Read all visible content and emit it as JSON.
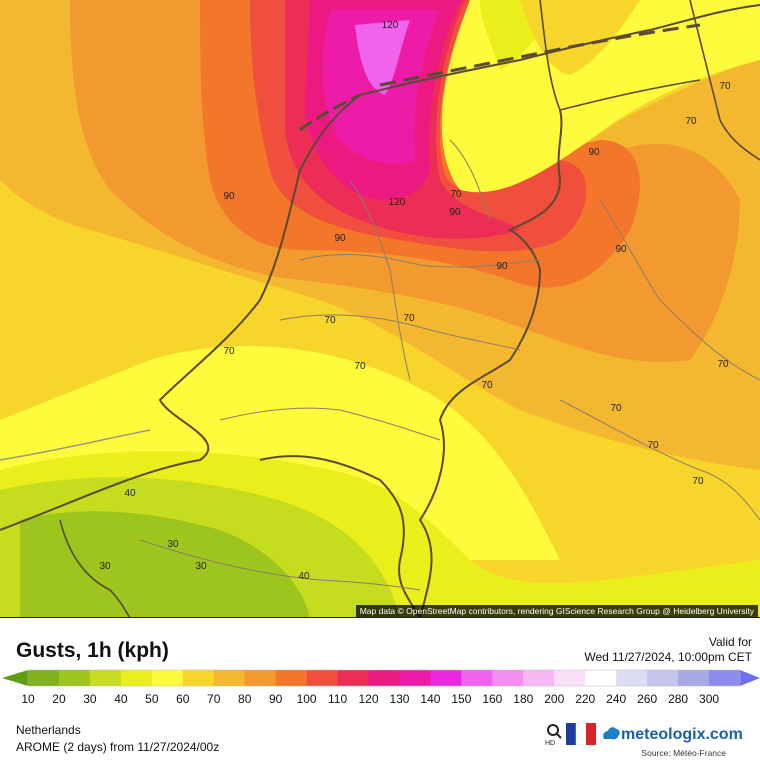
{
  "map": {
    "attribution": "Map data © OpenStreetMap contributors, rendering GIScience Research Group @ Heidelberg University",
    "contour_labels": [
      {
        "text": "120",
        "id": "a"
      },
      {
        "text": "120",
        "id": "b"
      },
      {
        "text": "90",
        "id": "c"
      },
      {
        "text": "90",
        "id": "d"
      },
      {
        "text": "90",
        "id": "e"
      },
      {
        "text": "90",
        "id": "f"
      },
      {
        "text": "90",
        "id": "g"
      },
      {
        "text": "90",
        "id": "h"
      },
      {
        "text": "70",
        "id": "i"
      },
      {
        "text": "70",
        "id": "j"
      },
      {
        "text": "70",
        "id": "k"
      },
      {
        "text": "70",
        "id": "l"
      },
      {
        "text": "70",
        "id": "m"
      },
      {
        "text": "70",
        "id": "n"
      },
      {
        "text": "70",
        "id": "o"
      },
      {
        "text": "70",
        "id": "p"
      },
      {
        "text": "70",
        "id": "q"
      },
      {
        "text": "70",
        "id": "r"
      },
      {
        "text": "70",
        "id": "s"
      },
      {
        "text": "70",
        "id": "t"
      },
      {
        "text": "40",
        "id": "u"
      },
      {
        "text": "30",
        "id": "v"
      },
      {
        "text": "30",
        "id": "w"
      },
      {
        "text": "30",
        "id": "x"
      },
      {
        "text": "40",
        "id": "y"
      }
    ]
  },
  "header": {
    "title": "Gusts, 1h (kph)",
    "valid_label": "Valid for",
    "valid_date": "Wed 11/27/2024, 10:00pm CET"
  },
  "legend": {
    "values": [
      "10",
      "20",
      "30",
      "40",
      "50",
      "60",
      "70",
      "80",
      "90",
      "100",
      "110",
      "120",
      "130",
      "140",
      "150",
      "160",
      "180",
      "200",
      "220",
      "240",
      "260",
      "280",
      "300"
    ],
    "colors": [
      "#5f9e10",
      "#7fb21c",
      "#9ec51e",
      "#c6dc1e",
      "#eaef1c",
      "#fdfb3b",
      "#f8d52a",
      "#f4b830",
      "#f29a2f",
      "#f2772b",
      "#ef4f3c",
      "#ec2d55",
      "#ec1a80",
      "#ec1ca8",
      "#ec27e0",
      "#f063ec",
      "#f48ef0",
      "#f6b8f4",
      "#f9e0f8",
      "#ffffff",
      "#dcdcf2",
      "#c4c4ec",
      "#a9a9e6",
      "#8c8cec",
      "#6e6ef0"
    ]
  },
  "footer": {
    "region": "Netherlands",
    "model": "AROME (2 days) from 11/27/2024/00z",
    "brand": "meteologix.com",
    "hd": "HD",
    "source": "Source: Météo-France"
  }
}
